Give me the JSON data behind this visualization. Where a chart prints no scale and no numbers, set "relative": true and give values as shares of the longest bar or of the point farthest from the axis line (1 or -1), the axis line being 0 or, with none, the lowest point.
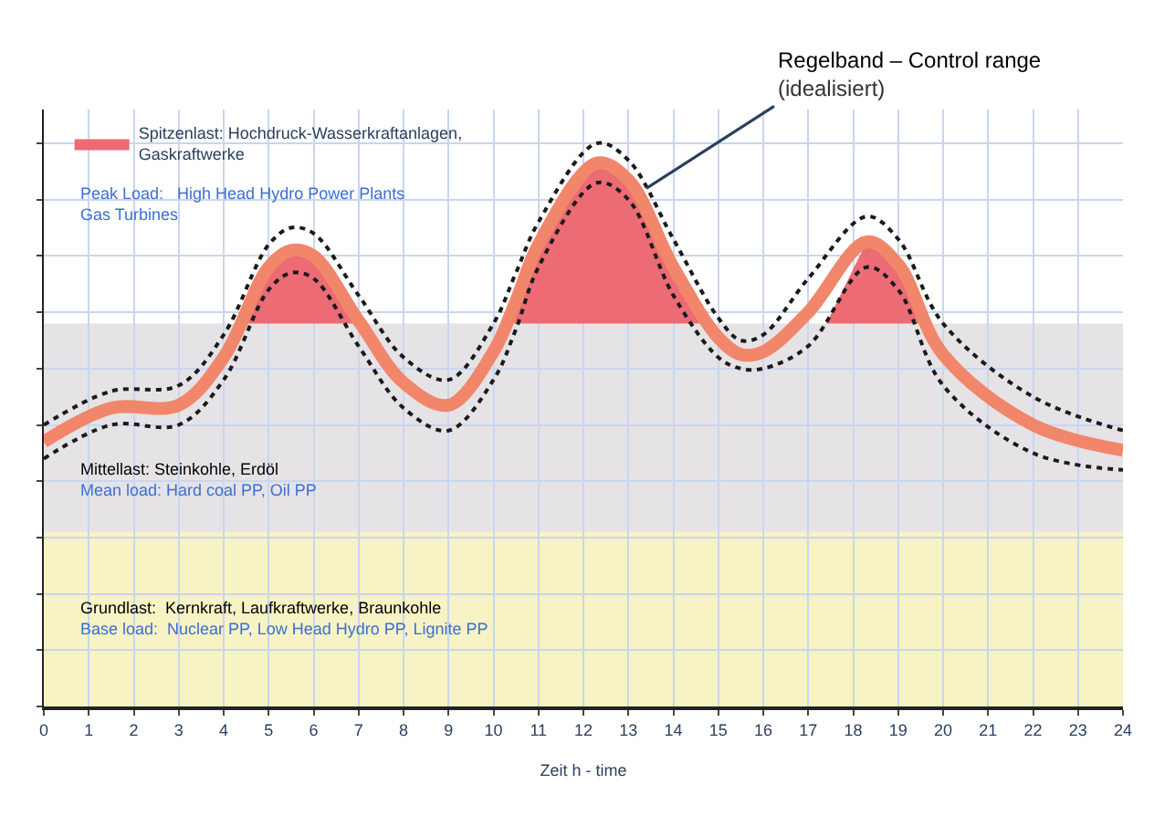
{
  "chart_data": {
    "type": "line",
    "relative": true,
    "xlabel": "Zeit h - time",
    "x": [
      0,
      1.5,
      3,
      4,
      5,
      5.5,
      6,
      7,
      8,
      9,
      10,
      10.5,
      11,
      12.3,
      13,
      14,
      15,
      15.5,
      16,
      17,
      18.3,
      19,
      20,
      22,
      24
    ],
    "xlim": [
      0,
      24
    ],
    "xticks": [
      0,
      1,
      2,
      3,
      4,
      5,
      6,
      7,
      8,
      9,
      10,
      11,
      12,
      13,
      14,
      15,
      16,
      17,
      18,
      19,
      20,
      21,
      22,
      23,
      24
    ],
    "grid": true,
    "legend": "top left",
    "series": [
      {
        "name": "Spitzenlast: Hochdruck-Wasserkraftanlagen,\nGaskraftwerke",
        "type": "area",
        "color": "#ec6b74",
        "x": [
          4.4,
          5,
          5.5,
          6,
          7,
          null,
          10.3,
          10.5,
          11,
          12.3,
          13,
          14,
          14.6,
          null,
          17.4,
          18.3,
          19,
          19.6
        ],
        "values": [
          0.68,
          0.78,
          0.81,
          0.8,
          0.685,
          null,
          0.68,
          0.72,
          0.82,
          0.965,
          0.935,
          0.78,
          0.68,
          null,
          0.68,
          0.825,
          0.785,
          0.68
        ]
      },
      {
        "color": "#f2866a",
        "line_style": "solid",
        "values": [
          0.47,
          0.53,
          0.535,
          0.62,
          0.78,
          0.81,
          0.8,
          0.685,
          0.575,
          0.535,
          0.63,
          0.72,
          0.82,
          0.965,
          0.935,
          0.78,
          0.655,
          0.625,
          0.63,
          0.7,
          0.825,
          0.785,
          0.625,
          0.5,
          0.455
        ]
      },
      {
        "color": "#1a1a1a",
        "line_style": "dotted",
        "values": [
          0.5,
          0.56,
          0.57,
          0.66,
          0.82,
          0.85,
          0.84,
          0.73,
          0.62,
          0.58,
          0.68,
          0.77,
          0.86,
          1.0,
          0.97,
          0.83,
          0.69,
          0.65,
          0.66,
          0.76,
          0.87,
          0.83,
          0.68,
          0.55,
          0.49
        ]
      },
      {
        "color": "#1a1a1a",
        "line_style": "dotted",
        "values": [
          0.44,
          0.5,
          0.5,
          0.58,
          0.74,
          0.77,
          0.76,
          0.64,
          0.53,
          0.49,
          0.58,
          0.67,
          0.78,
          0.93,
          0.9,
          0.73,
          0.62,
          0.6,
          0.6,
          0.64,
          0.78,
          0.74,
          0.57,
          0.45,
          0.42
        ]
      }
    ],
    "bands": [
      {
        "axis": "y",
        "from": 0,
        "to": 0.31,
        "color": "#f7f3c4",
        "label": "Grundlast:  Kernkraft, Laufkraftwerke, Braunkohle\nBase load:  Nuclear PP, Low Head Hydro PP, Lignite PP"
      },
      {
        "axis": "y",
        "from": 0.31,
        "to": 0.68,
        "color": "#e6e3e6",
        "label": "Mittellast: Steinkohle, Erdöl\nMean load: Hard coal PP, Oil PP"
      }
    ],
    "annotations": [
      "Peak Load:   High Head Hydro Power Plants\nGas Turbines",
      {
        "text": "Regelband – Control range\n(idealisiert)",
        "x": 13.4,
        "y": 0.92
      }
    ]
  }
}
